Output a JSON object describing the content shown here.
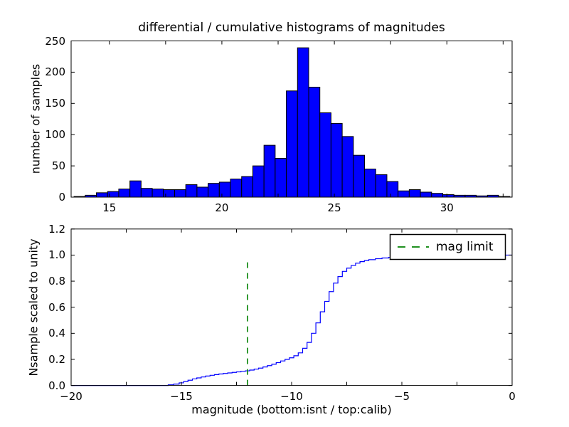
{
  "figure": {
    "background": "#ffffff",
    "title": "differential / cumulative histograms of magnitudes"
  },
  "chart_data": [
    {
      "type": "bar",
      "subtype": "histogram",
      "title": "differential / cumulative histograms of magnitudes",
      "ylabel": "number of samples",
      "xlim": [
        13.3,
        32.9
      ],
      "ylim": [
        0,
        250
      ],
      "grid": false,
      "bar_color": "#0000ff",
      "bar_edge_color": "#000000",
      "bin_start": 13.43,
      "bin_width": 0.4966,
      "counts": [
        1,
        3,
        7,
        9,
        13,
        26,
        14,
        13,
        12,
        12,
        20,
        16,
        22,
        24,
        29,
        33,
        50,
        83,
        62,
        170,
        239,
        176,
        135,
        118,
        97,
        67,
        45,
        36,
        25,
        10,
        12,
        8,
        6,
        4,
        3,
        3,
        2,
        3,
        1
      ],
      "yticks": [
        {
          "v": 0,
          "label": "0"
        },
        {
          "v": 50,
          "label": "50"
        },
        {
          "v": 100,
          "label": "100"
        },
        {
          "v": 150,
          "label": "150"
        },
        {
          "v": 200,
          "label": "200"
        },
        {
          "v": 250,
          "label": "250"
        }
      ],
      "xticks_labeled": [
        {
          "v": 15,
          "label": "15"
        },
        {
          "v": 20,
          "label": "20"
        },
        {
          "v": 25,
          "label": "25"
        },
        {
          "v": 30,
          "label": "30"
        }
      ],
      "xticks_unlabeled": [
        17.5,
        22.5,
        27.5,
        32.5
      ]
    },
    {
      "type": "line",
      "subtype": "cumulative-step",
      "ylabel": "Nsample scaled to unity",
      "xlabel": "magnitude (bottom:isnt / top:calib)",
      "xlim": [
        -20,
        0
      ],
      "ylim": [
        0,
        1.2
      ],
      "grid": false,
      "line_color": "#0000ff",
      "cdf_points": [
        [
          -20,
          0
        ],
        [
          -15.6,
          0
        ],
        [
          -15.6,
          0.005
        ],
        [
          -15.35,
          0.01
        ],
        [
          -15.1,
          0.02
        ],
        [
          -14.9,
          0.03
        ],
        [
          -14.7,
          0.04
        ],
        [
          -14.5,
          0.05
        ],
        [
          -14.3,
          0.058
        ],
        [
          -14.1,
          0.065
        ],
        [
          -13.9,
          0.072
        ],
        [
          -13.7,
          0.078
        ],
        [
          -13.5,
          0.083
        ],
        [
          -13.3,
          0.088
        ],
        [
          -13.1,
          0.092
        ],
        [
          -12.9,
          0.096
        ],
        [
          -12.7,
          0.1
        ],
        [
          -12.5,
          0.104
        ],
        [
          -12.3,
          0.108
        ],
        [
          -12.1,
          0.112
        ],
        [
          -11.9,
          0.118
        ],
        [
          -11.7,
          0.125
        ],
        [
          -11.5,
          0.133
        ],
        [
          -11.3,
          0.142
        ],
        [
          -11.1,
          0.152
        ],
        [
          -10.9,
          0.163
        ],
        [
          -10.7,
          0.175
        ],
        [
          -10.5,
          0.188
        ],
        [
          -10.3,
          0.2
        ],
        [
          -10.1,
          0.212
        ],
        [
          -9.9,
          0.228
        ],
        [
          -9.7,
          0.25
        ],
        [
          -9.5,
          0.285
        ],
        [
          -9.3,
          0.33
        ],
        [
          -9.1,
          0.4
        ],
        [
          -8.9,
          0.48
        ],
        [
          -8.7,
          0.565
        ],
        [
          -8.5,
          0.645
        ],
        [
          -8.3,
          0.72
        ],
        [
          -8.1,
          0.785
        ],
        [
          -7.9,
          0.835
        ],
        [
          -7.7,
          0.875
        ],
        [
          -7.5,
          0.9
        ],
        [
          -7.3,
          0.92
        ],
        [
          -7.1,
          0.938
        ],
        [
          -6.9,
          0.95
        ],
        [
          -6.7,
          0.958
        ],
        [
          -6.5,
          0.965
        ],
        [
          -6.2,
          0.972
        ],
        [
          -5.9,
          0.978
        ],
        [
          -5.6,
          0.983
        ],
        [
          -5.3,
          0.987
        ],
        [
          -5.0,
          0.99
        ],
        [
          -4.6,
          0.993
        ],
        [
          -4.2,
          0.996
        ],
        [
          -3.8,
          0.998
        ],
        [
          -3.4,
          0.999
        ],
        [
          -3.0,
          1.0
        ],
        [
          0,
          1.0
        ]
      ],
      "vline": {
        "x": -12,
        "ymin": 0,
        "ymax": 0.97,
        "color": "#008000",
        "style": "dashed"
      },
      "legend": {
        "label": "mag limit",
        "position": "upper right",
        "sample_color": "#008000"
      },
      "yticks": [
        {
          "v": 0.0,
          "label": "0.0"
        },
        {
          "v": 0.2,
          "label": "0.2"
        },
        {
          "v": 0.4,
          "label": "0.4"
        },
        {
          "v": 0.6,
          "label": "0.6"
        },
        {
          "v": 0.8,
          "label": "0.8"
        },
        {
          "v": 1.0,
          "label": "1.0"
        },
        {
          "v": 1.2,
          "label": "1.2"
        }
      ],
      "xticks_labeled": [
        {
          "v": -20,
          "label": "−20"
        },
        {
          "v": -15,
          "label": "−15"
        },
        {
          "v": -10,
          "label": "−10"
        },
        {
          "v": -5,
          "label": "−5"
        },
        {
          "v": 0,
          "label": "0"
        }
      ],
      "xticks_unlabeled": [
        -17.5,
        -12.5,
        -7.5,
        -2.5
      ]
    }
  ]
}
